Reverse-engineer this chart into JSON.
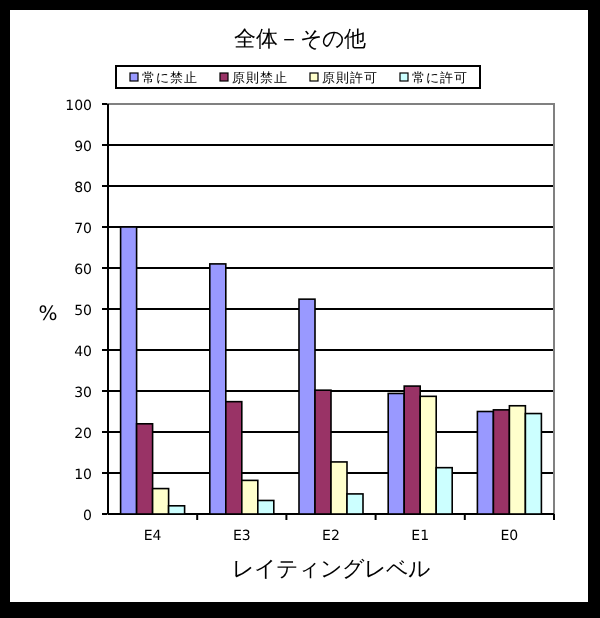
{
  "chart_data": {
    "type": "bar",
    "title": "全体－その他",
    "xlabel": "レイティングレベル",
    "ylabel": "%",
    "categories": [
      "E4",
      "E3",
      "E2",
      "E1",
      "E0"
    ],
    "series": [
      {
        "name": "常に禁止",
        "color": "#9999ff",
        "values": [
          70,
          61,
          52.4,
          29.4,
          25
        ]
      },
      {
        "name": "原則禁止",
        "color": "#993366",
        "values": [
          22,
          27.4,
          30.2,
          31.2,
          25.4
        ]
      },
      {
        "name": "原則許可",
        "color": "#ffffcc",
        "values": [
          6.2,
          8.2,
          12.7,
          28.7,
          26.4
        ]
      },
      {
        "name": "常に許可",
        "color": "#ccffff",
        "values": [
          2,
          3.3,
          4.9,
          11.3,
          24.5
        ]
      }
    ],
    "ylim": [
      0,
      100
    ],
    "yticks": [
      0,
      10,
      20,
      30,
      40,
      50,
      60,
      70,
      80,
      90,
      100
    ],
    "grid": "y",
    "legend": "top"
  }
}
